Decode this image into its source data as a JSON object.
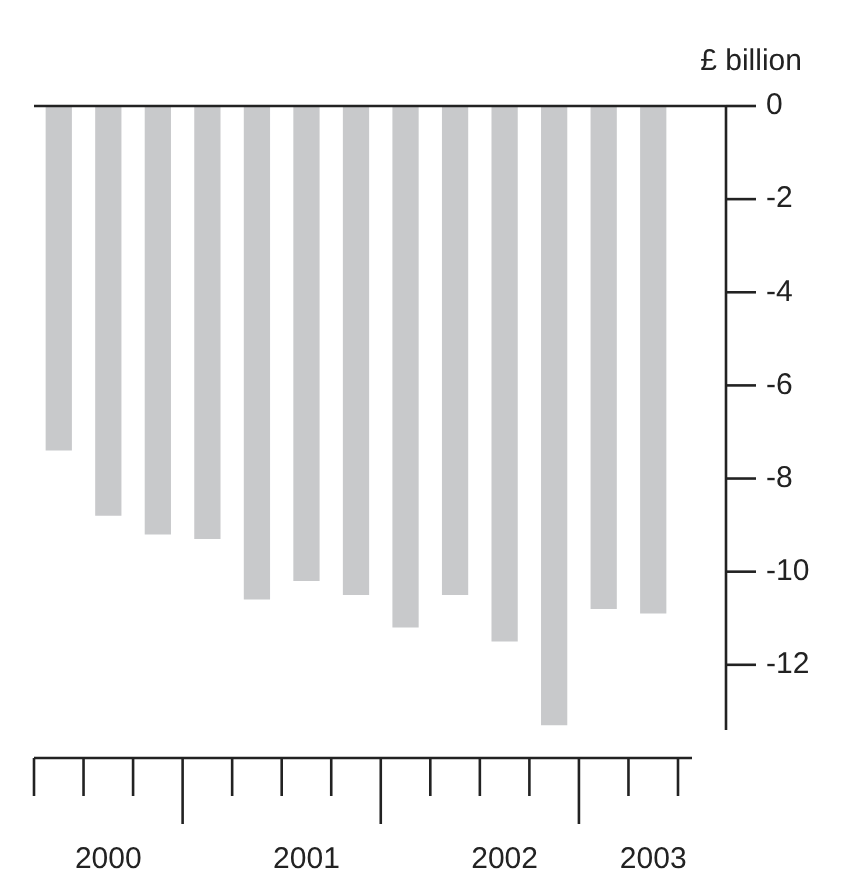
{
  "chart_data": {
    "type": "bar",
    "ylabel": "£ billion",
    "categories": [
      null,
      "2000",
      null,
      null,
      null,
      "2001",
      null,
      null,
      null,
      "2002",
      null,
      null,
      "2003"
    ],
    "values": [
      -7.4,
      -8.8,
      -9.2,
      -9.3,
      -10.6,
      -10.2,
      -10.5,
      -11.2,
      -10.5,
      -11.5,
      -13.3,
      -10.8,
      -10.9
    ],
    "color": "#c8c9cb",
    "ylim": [
      -13.4,
      0
    ],
    "yticks": [
      0,
      -2,
      -4,
      -6,
      -8,
      -10,
      -12
    ],
    "grid": false,
    "legend": false
  }
}
